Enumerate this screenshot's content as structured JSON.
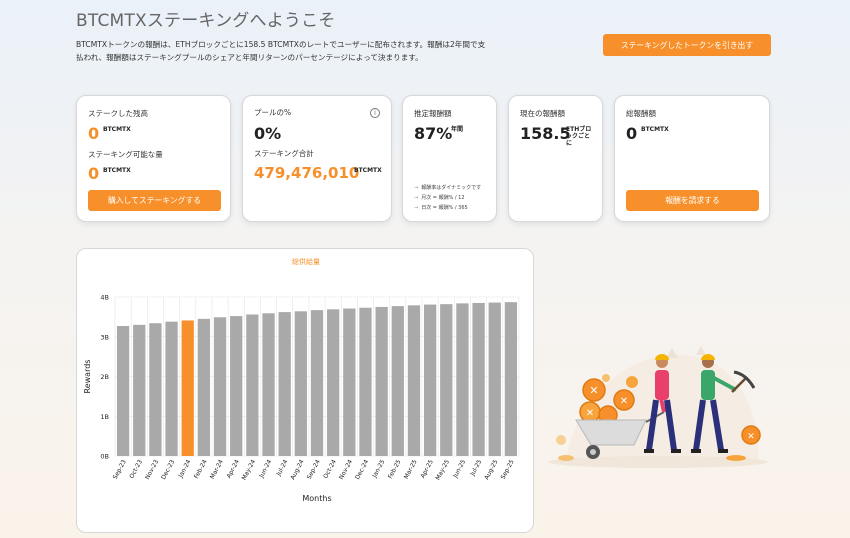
{
  "header": {
    "title": "BTCMTXステーキングへようこそ",
    "intro": "BTCMTXトークンの報酬は、ETHブロックごとに158.5 BTCMTXのレートでユーザーに配布されます。報酬は2年間で支払われ、報酬額はステーキングプールのシェアと年間リターンのパーセンテージによって決まります。",
    "withdraw_label": "ステーキングしたトークンを引き出す"
  },
  "cards": {
    "staked": {
      "label": "ステークした残高",
      "value": "0",
      "unit": "BTCMTX",
      "available_label": "ステーキング可能な量",
      "available_value": "0",
      "available_unit": "BTCMTX",
      "button": "購入してステーキングする"
    },
    "pool": {
      "label": "プールの%",
      "value": "0%",
      "total_label": "ステーキング合計",
      "total_value": "479,476,010",
      "total_unit": "BTCMTX"
    },
    "estimated": {
      "label": "推定報酬額",
      "value": "87%",
      "unit": "年間",
      "notes": [
        "報酬率はダイナミックです",
        "月次 = 報酬% / 12",
        "日次 = 報酬% / 365"
      ]
    },
    "current": {
      "label": "現在の報酬額",
      "value": "158.5",
      "unit_line1": "ETHブロ",
      "unit_line2": "ックごと",
      "unit_line3": "に"
    },
    "total": {
      "label": "総報酬額",
      "value": "0",
      "unit": "BTCMTX",
      "button": "報酬を請求する"
    }
  },
  "colors": {
    "accent": "#f7902a",
    "bar": "#a9a9a9",
    "highlight_bar": "#f7902a"
  },
  "chart_data": {
    "type": "bar",
    "title": "総供給量",
    "xlabel": "Months",
    "ylabel": "Rewards",
    "ylim": [
      0,
      4
    ],
    "yticks": [
      0,
      1,
      2,
      3,
      4
    ],
    "ytick_labels": [
      "0B",
      "1B",
      "2B",
      "3B",
      "4B"
    ],
    "categories": [
      "Sep-23",
      "Oct-23",
      "Nov-23",
      "Dec-23",
      "Jan-24",
      "Feb-24",
      "Mar-24",
      "Apr-24",
      "May-24",
      "Jun-24",
      "Jul-24",
      "Aug-24",
      "Sep-24",
      "Oct-24",
      "Nov-24",
      "Dec-24",
      "Jan-25",
      "Feb-25",
      "Mar-25",
      "Apr-25",
      "May-25",
      "Jun-25",
      "Jul-25",
      "Aug-25",
      "Sep-25"
    ],
    "values": [
      3.27,
      3.3,
      3.34,
      3.38,
      3.41,
      3.45,
      3.49,
      3.52,
      3.56,
      3.59,
      3.62,
      3.64,
      3.67,
      3.69,
      3.71,
      3.73,
      3.75,
      3.77,
      3.79,
      3.81,
      3.82,
      3.84,
      3.85,
      3.86,
      3.87
    ],
    "highlight_index": 4,
    "grid": true
  }
}
